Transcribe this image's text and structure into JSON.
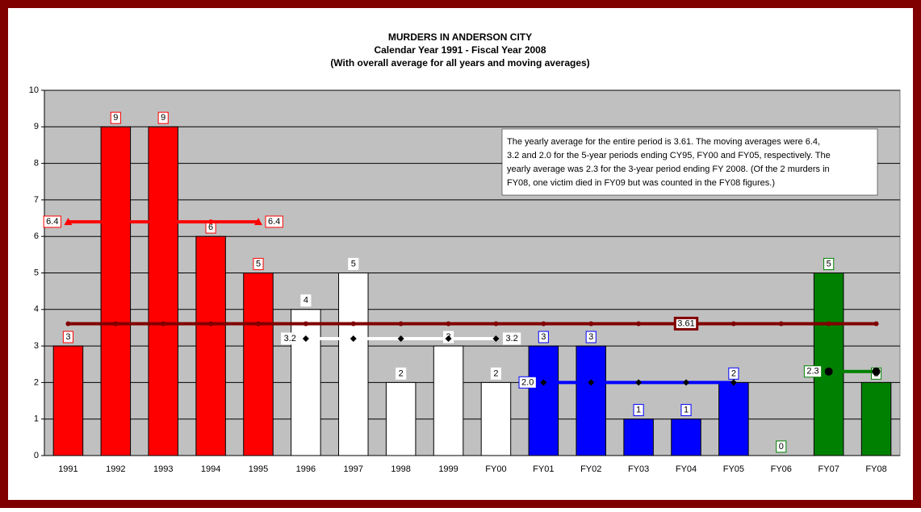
{
  "chart_data": {
    "type": "bar",
    "title": "MURDERS IN ANDERSON CITY",
    "subtitle": [
      "Calendar Year 1991 - Fiscal Year 2008",
      "(With overall average for all years and moving averages)"
    ],
    "categories": [
      "1991",
      "1992",
      "1993",
      "1994",
      "1995",
      "1996",
      "1997",
      "1998",
      "1999",
      "FY00",
      "FY01",
      "FY02",
      "FY03",
      "FY04",
      "FY05",
      "FY06",
      "FY07",
      "FY08"
    ],
    "values": [
      3,
      9,
      9,
      6,
      5,
      4,
      5,
      2,
      3,
      2,
      3,
      3,
      1,
      1,
      2,
      0,
      5,
      2
    ],
    "colors": [
      "#ff0000",
      "#ff0000",
      "#ff0000",
      "#ff0000",
      "#ff0000",
      "#ffffff",
      "#ffffff",
      "#ffffff",
      "#ffffff",
      "#ffffff",
      "#0000ff",
      "#0000ff",
      "#0000ff",
      "#0000ff",
      "#0000ff",
      "#008000",
      "#008000",
      "#008000"
    ],
    "lines": [
      {
        "color": "#800000",
        "marker": "circle",
        "marker_color": "#800000",
        "values": [
          3.61,
          3.61,
          3.61,
          3.61,
          3.61,
          3.61,
          3.61,
          3.61,
          3.61,
          3.61,
          3.61,
          3.61,
          3.61,
          3.61,
          3.61,
          3.61,
          3.61,
          3.61
        ],
        "value_labels": [
          null,
          null,
          null,
          null,
          null,
          null,
          null,
          null,
          null,
          null,
          null,
          null,
          null,
          "3.61",
          null,
          null,
          null,
          null
        ]
      },
      {
        "color": "#ff0000",
        "marker": "triangle",
        "marker_color": "#ff0000",
        "values": [
          6.4,
          6.4,
          6.4,
          6.4,
          6.4,
          null,
          null,
          null,
          null,
          null,
          null,
          null,
          null,
          null,
          null,
          null,
          null,
          null
        ],
        "value_labels": [
          "6.4",
          null,
          null,
          null,
          "6.4",
          null,
          null,
          null,
          null,
          null,
          null,
          null,
          null,
          null,
          null,
          null,
          null,
          null
        ]
      },
      {
        "color": "#ffffff",
        "marker": "diamond",
        "marker_color": "#000000",
        "values": [
          null,
          null,
          null,
          null,
          null,
          3.2,
          3.2,
          3.2,
          3.2,
          3.2,
          null,
          null,
          null,
          null,
          null,
          null,
          null,
          null
        ],
        "value_labels": [
          null,
          null,
          null,
          null,
          null,
          "3.2",
          null,
          null,
          null,
          "3.2",
          null,
          null,
          null,
          null,
          null,
          null,
          null,
          null
        ]
      },
      {
        "color": "#0000ff",
        "marker": "diamond",
        "marker_color": "#000000",
        "values": [
          null,
          null,
          null,
          null,
          null,
          null,
          null,
          null,
          null,
          null,
          2.0,
          2.0,
          2.0,
          2.0,
          2.0,
          null,
          null,
          null
        ],
        "value_labels": [
          null,
          null,
          null,
          null,
          null,
          null,
          null,
          null,
          null,
          null,
          "2.0",
          null,
          null,
          null,
          null,
          null,
          null,
          null
        ]
      },
      {
        "color": "#008000",
        "marker": "circle",
        "marker_color": "#000000",
        "values": [
          null,
          null,
          null,
          null,
          null,
          null,
          null,
          null,
          null,
          null,
          null,
          null,
          null,
          null,
          null,
          null,
          2.3,
          2.3
        ],
        "value_labels": [
          null,
          null,
          null,
          null,
          null,
          null,
          null,
          null,
          null,
          null,
          null,
          null,
          null,
          null,
          null,
          null,
          "2.3",
          null
        ]
      }
    ],
    "annotation": [
      "The yearly average for the entire period is 3.61.  The moving averages were 6.4,",
      "3.2 and 2.0 for the 5-year periods ending CY95, FY00 and FY05, respectively.  The",
      "yearly average was 2.3 for the 3-year period ending FY 2008.  (Of the 2 murders in",
      "FY08, one victim died in FY09 but was counted in the FY08 figures.)"
    ],
    "ylim": [
      0,
      10
    ],
    "yticks": [
      0,
      1,
      2,
      3,
      4,
      5,
      6,
      7,
      8,
      9,
      10
    ],
    "grid": true
  }
}
